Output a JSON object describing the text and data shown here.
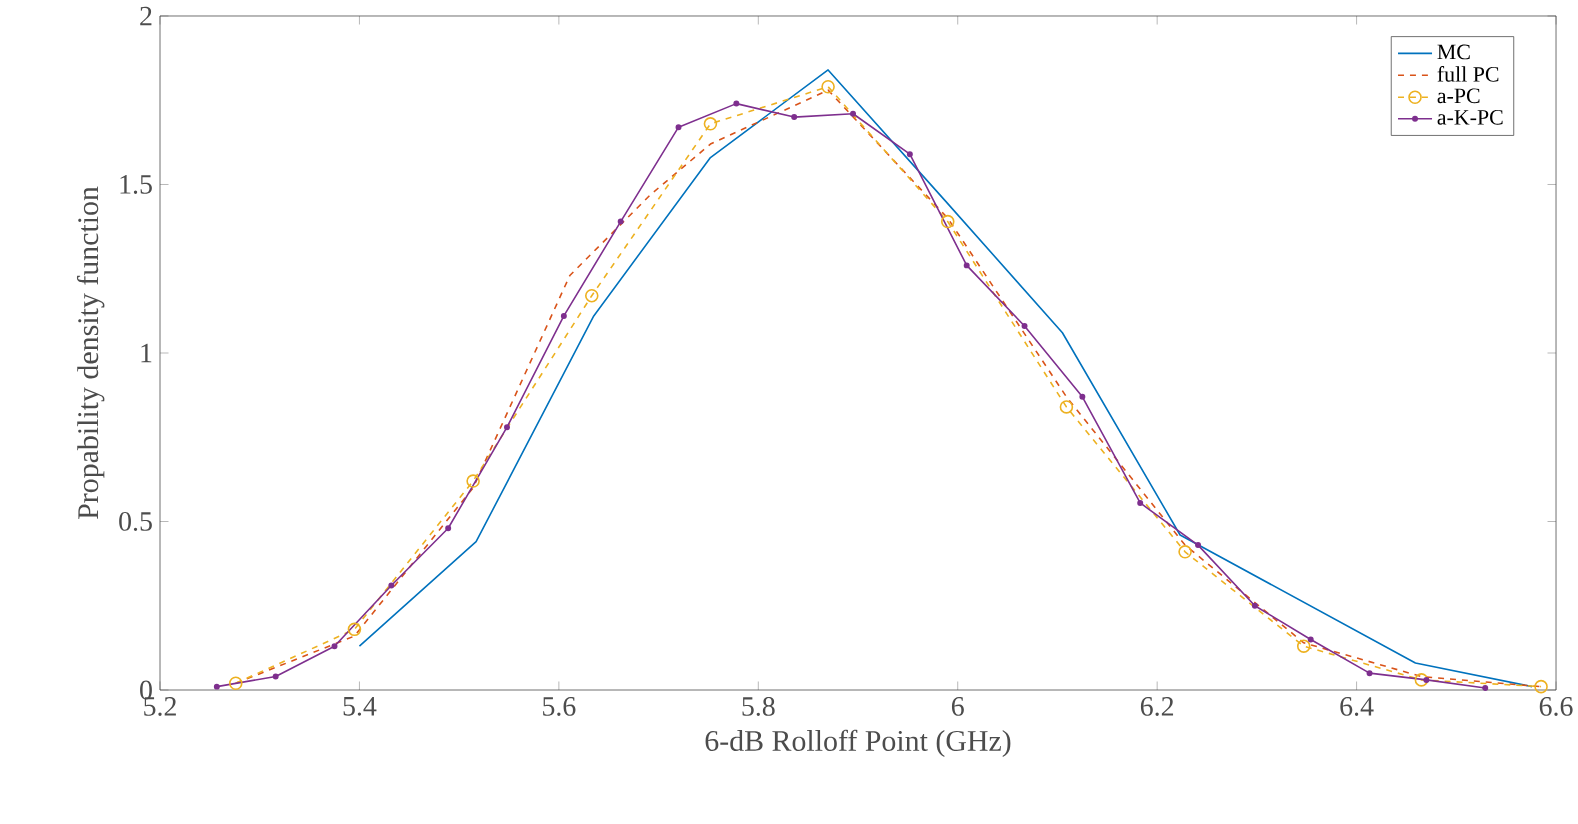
{
  "chart_data": {
    "type": "line",
    "xlabel": "6-dB Rolloff Point (GHz)",
    "ylabel": "Propability density function",
    "xlim": [
      5.2,
      6.6
    ],
    "ylim": [
      0,
      2
    ],
    "xticks": [
      5.2,
      5.4,
      5.6,
      5.8,
      6,
      6.2,
      6.4,
      6.6
    ],
    "yticks": [
      0,
      0.5,
      1,
      1.5,
      2
    ],
    "legend": "top right",
    "grid": false,
    "series": [
      {
        "name": "MC",
        "color": "#0072bd",
        "line_style": "solid",
        "marker": "none",
        "x": [
          5.4,
          5.517,
          5.635,
          5.752,
          5.87,
          5.988,
          6.105,
          6.223,
          6.341,
          6.459,
          6.576
        ],
        "values": [
          0.13,
          0.44,
          1.11,
          1.58,
          1.84,
          1.45,
          1.06,
          0.46,
          0.27,
          0.08,
          0.01
        ]
      },
      {
        "name": "full PC",
        "color": "#d95319",
        "line_style": "dashed",
        "marker": "none",
        "x": [
          5.276,
          5.395,
          5.514,
          5.611,
          5.692,
          5.752,
          5.87,
          5.99,
          6.109,
          6.228,
          6.347,
          6.465,
          6.585
        ],
        "values": [
          0.02,
          0.16,
          0.6,
          1.23,
          1.47,
          1.62,
          1.78,
          1.4,
          0.87,
          0.43,
          0.14,
          0.04,
          0.01
        ]
      },
      {
        "name": "a-PC",
        "color": "#edb120",
        "line_style": "dashed",
        "marker": "circle",
        "x": [
          5.276,
          5.395,
          5.514,
          5.633,
          5.752,
          5.87,
          5.99,
          6.109,
          6.228,
          6.347,
          6.465,
          6.585
        ],
        "values": [
          0.02,
          0.18,
          0.62,
          1.17,
          1.68,
          1.79,
          1.39,
          0.84,
          0.41,
          0.13,
          0.03,
          0.01
        ]
      },
      {
        "name": "a-K-PC",
        "color": "#7e2f8e",
        "line_style": "solid",
        "marker": "dot",
        "x": [
          5.257,
          5.316,
          5.375,
          5.432,
          5.489,
          5.548,
          5.605,
          5.662,
          5.72,
          5.778,
          5.836,
          5.895,
          5.952,
          6.009,
          6.067,
          6.125,
          6.183,
          6.241,
          6.298,
          6.354,
          6.413,
          6.47,
          6.529
        ],
        "values": [
          0.01,
          0.04,
          0.13,
          0.31,
          0.48,
          0.78,
          1.11,
          1.39,
          1.67,
          1.74,
          1.7,
          1.71,
          1.59,
          1.26,
          1.08,
          0.87,
          0.555,
          0.43,
          0.25,
          0.15,
          0.05,
          0.03,
          0.006
        ]
      }
    ]
  }
}
